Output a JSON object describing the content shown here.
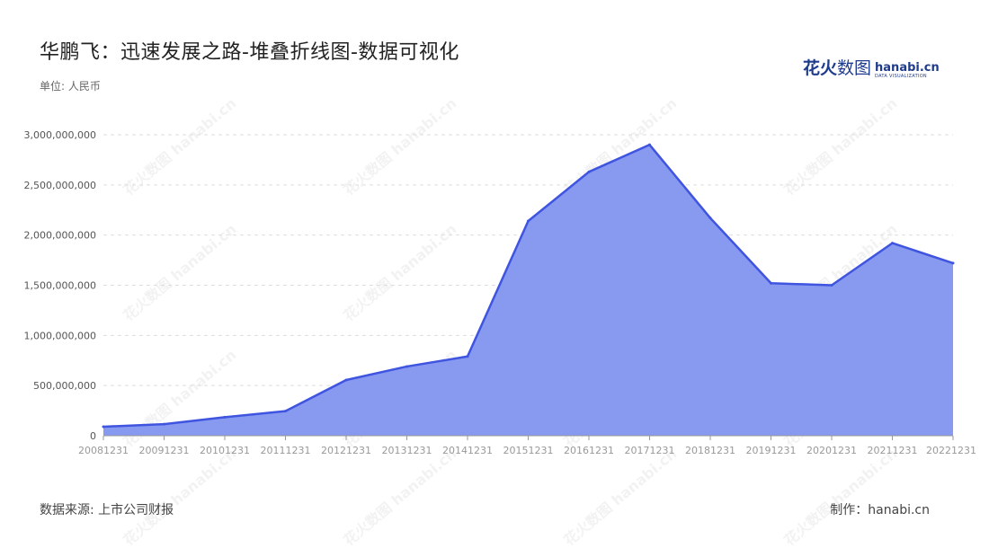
{
  "title": "华鹏飞：迅速发展之路-堆叠折线图-数据可视化",
  "unit_label": "单位: 人民币",
  "logo": {
    "cn_bold": "花火",
    "cn_light": "数图",
    "en": "hanabi.cn",
    "en_sub": "DATA VISUALIZATION",
    "brand_color": "#1f3b8c"
  },
  "watermark_text": "花火数图 hanabi.cn",
  "source": "数据来源: 上市公司财报",
  "credit": "制作：hanabi.cn",
  "colors": {
    "line": "#3f55e0",
    "fill": "#8899f0",
    "grid": "#dddddd",
    "axis": "#999999"
  },
  "chart_data": {
    "type": "area",
    "x": [
      "20081231",
      "20091231",
      "20101231",
      "20111231",
      "20121231",
      "20131231",
      "20141231",
      "20151231",
      "20161231",
      "20171231",
      "20181231",
      "20191231",
      "20201231",
      "20211231",
      "20221231"
    ],
    "series": [
      {
        "values": [
          90000000,
          115000000,
          185000000,
          245000000,
          555000000,
          690000000,
          790000000,
          2140000000,
          2630000000,
          2900000000,
          2170000000,
          1520000000,
          1500000000,
          1920000000,
          1720000000
        ]
      }
    ],
    "y_ticks": [
      "0",
      "500,000,000",
      "1,000,000,000",
      "1,500,000,000",
      "2,000,000,000",
      "2,500,000,000",
      "3,000,000,000"
    ],
    "ylim": [
      0,
      3000000000
    ],
    "grid": "horizontal-dashed",
    "legend": "none"
  }
}
